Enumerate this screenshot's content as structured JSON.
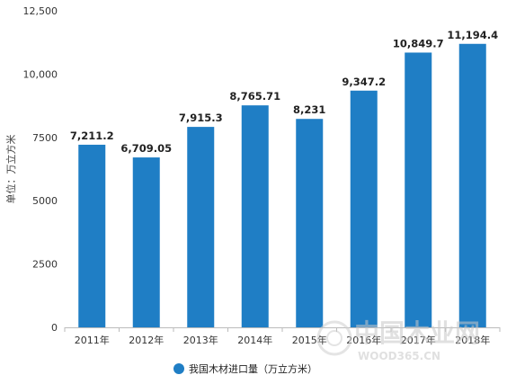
{
  "chart_data": {
    "type": "bar",
    "categories": [
      "2011年",
      "2012年",
      "2013年",
      "2014年",
      "2015年",
      "2016年",
      "2017年",
      "2018年"
    ],
    "series": [
      {
        "name": "我国木材进口量（万立方米）",
        "values": [
          7211.2,
          6709.05,
          7915.3,
          8765.71,
          8231,
          9347.2,
          10849.7,
          11194.4
        ],
        "value_labels": [
          "7,211.2",
          "6,709.05",
          "7,915.3",
          "8,765.71",
          "8,231",
          "9,347.2",
          "10,849.7",
          "11,194.4"
        ],
        "color": "#1f7ec5"
      }
    ],
    "ylabel": "单位：万立方米",
    "ylim": [
      0,
      12500
    ],
    "yticks": [
      0,
      2500,
      5000,
      7500,
      10000,
      12500
    ],
    "ytick_labels": [
      "0",
      "2500",
      "5000",
      "7500",
      "10,000",
      "12,500"
    ],
    "grid": false,
    "legend_position": "bottom-center"
  },
  "watermark": {
    "text": "中国木业网",
    "subtext": "WOOD365.CN"
  }
}
